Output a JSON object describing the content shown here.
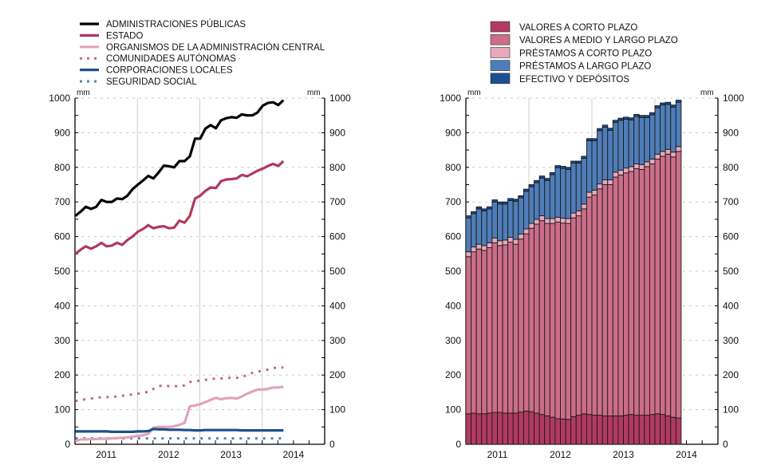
{
  "chart_data": [
    {
      "type": "line",
      "title": "",
      "unit_label": "mm",
      "xlabel": "",
      "ylabel": "mm",
      "ylim": [
        0,
        1000
      ],
      "yticks": [
        0,
        100,
        200,
        300,
        400,
        500,
        600,
        700,
        800,
        900,
        1000
      ],
      "year_labels": [
        "2011",
        "2012",
        "2013",
        "2014"
      ],
      "x_start": "2011-01",
      "x_end_axis": "2014-12",
      "frequency": "monthly",
      "grid": "horizontal dashed, vertical solid at year boundaries",
      "legend_position": "top",
      "series": [
        {
          "name": "ADMINISTRACIONES PÚBLICAS",
          "style": "solid-thick",
          "color": "#000000",
          "values": [
            660,
            672,
            686,
            680,
            686,
            706,
            700,
            700,
            710,
            708,
            718,
            737,
            750,
            762,
            775,
            768,
            785,
            805,
            803,
            800,
            818,
            818,
            832,
            883,
            883,
            912,
            922,
            913,
            936,
            942,
            945,
            943,
            953,
            950,
            950,
            958,
            978,
            986,
            988,
            980,
            994
          ]
        },
        {
          "name": "ESTADO",
          "style": "solid-thick",
          "color": "#b03a5b",
          "values": [
            550,
            562,
            572,
            565,
            572,
            582,
            572,
            574,
            582,
            576,
            590,
            600,
            614,
            622,
            633,
            624,
            628,
            630,
            624,
            626,
            646,
            640,
            660,
            710,
            718,
            732,
            742,
            740,
            760,
            765,
            766,
            768,
            778,
            774,
            782,
            790,
            796,
            804,
            810,
            804,
            818
          ]
        },
        {
          "name": "ORGANISMOS DE LA ADMINISTRACIÓN CENTRAL",
          "style": "solid-thick",
          "color": "#e3a3b8",
          "values": [
            8,
            14,
            14,
            15,
            15,
            16,
            16,
            17,
            18,
            19,
            20,
            22,
            24,
            26,
            30,
            48,
            50,
            50,
            50,
            52,
            56,
            62,
            110,
            112,
            116,
            122,
            128,
            134,
            130,
            133,
            134,
            132,
            138,
            146,
            152,
            158,
            158,
            160,
            164,
            164,
            166
          ]
        },
        {
          "name": "COMUNIDADES AUTÓNOMAS",
          "style": "dotted",
          "color": "#c06a88",
          "values": [
            125,
            128,
            130,
            132,
            134,
            136,
            136,
            137,
            138,
            140,
            142,
            144,
            146,
            148,
            152,
            160,
            168,
            170,
            168,
            168,
            168,
            170,
            180,
            182,
            184,
            186,
            188,
            190,
            190,
            192,
            192,
            192,
            194,
            200,
            206,
            210,
            212,
            216,
            220,
            222,
            222
          ]
        },
        {
          "name": "CORPORACIONES LOCALES",
          "style": "solid-thick",
          "color": "#1f4e8c",
          "values": [
            37,
            37,
            37,
            37,
            37,
            37,
            37,
            36,
            36,
            36,
            36,
            36,
            37,
            37,
            38,
            44,
            43,
            43,
            42,
            42,
            42,
            41,
            41,
            40,
            40,
            41,
            41,
            41,
            41,
            41,
            41,
            41,
            40,
            40,
            40,
            40,
            40,
            40,
            40,
            40,
            40
          ]
        },
        {
          "name": "SEGURIDAD SOCIAL",
          "style": "dotted",
          "color": "#5b84a6",
          "values": [
            17,
            17,
            17,
            17,
            17,
            17,
            17,
            17,
            17,
            17,
            17,
            17,
            17,
            17,
            17,
            17,
            17,
            17,
            17,
            17,
            17,
            17,
            17,
            17,
            17,
            17,
            17,
            17,
            17,
            17,
            17,
            17,
            17,
            17,
            17,
            17,
            17,
            17,
            17,
            17,
            17
          ]
        }
      ]
    },
    {
      "type": "bar",
      "stacked": true,
      "title": "",
      "unit_label": "mm",
      "xlabel": "",
      "ylabel": "mm",
      "ylim": [
        0,
        1000
      ],
      "yticks": [
        0,
        100,
        200,
        300,
        400,
        500,
        600,
        700,
        800,
        900,
        1000
      ],
      "year_labels": [
        "2011",
        "2012",
        "2013",
        "2014"
      ],
      "x_start": "2011-01",
      "frequency": "monthly",
      "grid": "horizontal dashed, vertical solid at year boundaries",
      "legend_position": "top",
      "series": [
        {
          "name": "VALORES A CORTO PLAZO",
          "color": "#b23a62",
          "values": [
            88,
            90,
            88,
            88,
            90,
            92,
            92,
            90,
            90,
            90,
            93,
            96,
            94,
            90,
            86,
            82,
            78,
            74,
            73,
            72,
            80,
            84,
            88,
            86,
            84,
            84,
            82,
            82,
            82,
            82,
            84,
            86,
            84,
            84,
            84,
            86,
            88,
            86,
            82,
            78,
            76
          ]
        },
        {
          "name": "VALORES A MEDIO Y LARGO PLAZO",
          "color": "#cc6d8a",
          "values": [
            454,
            466,
            476,
            472,
            478,
            490,
            482,
            486,
            494,
            488,
            500,
            512,
            530,
            546,
            560,
            556,
            560,
            568,
            566,
            566,
            574,
            576,
            592,
            628,
            636,
            654,
            668,
            668,
            690,
            696,
            700,
            702,
            712,
            710,
            718,
            724,
            736,
            746,
            756,
            752,
            770
          ]
        },
        {
          "name": "PRÉSTAMOS A CORTO PLAZO",
          "color": "#e7a8bb",
          "values": [
            14,
            14,
            14,
            14,
            14,
            14,
            14,
            14,
            14,
            14,
            14,
            14,
            14,
            14,
            14,
            14,
            14,
            14,
            14,
            14,
            14,
            14,
            14,
            14,
            14,
            14,
            14,
            14,
            14,
            14,
            14,
            14,
            14,
            14,
            14,
            14,
            14,
            14,
            14,
            14,
            14
          ]
        },
        {
          "name": "PRÉSTAMOS A LARGO PLAZO",
          "color": "#4f7db8",
          "values": [
            98,
            96,
            102,
            100,
            98,
            104,
            106,
            104,
            106,
            110,
            105,
            109,
            106,
            106,
            109,
            110,
            127,
            143,
            144,
            142,
            144,
            138,
            132,
            149,
            143,
            154,
            152,
            143,
            144,
            144,
            141,
            135,
            137,
            136,
            128,
            128,
            134,
            134,
            130,
            130,
            128
          ]
        },
        {
          "name": "EFECTIVO Y DEPÓSITOS",
          "color": "#1c4f93",
          "values": [
            6,
            6,
            6,
            6,
            6,
            6,
            6,
            6,
            6,
            6,
            6,
            6,
            6,
            6,
            6,
            6,
            6,
            6,
            6,
            6,
            6,
            6,
            6,
            6,
            6,
            6,
            6,
            6,
            6,
            6,
            6,
            6,
            6,
            6,
            6,
            6,
            6,
            6,
            6,
            6,
            6
          ]
        }
      ]
    }
  ]
}
